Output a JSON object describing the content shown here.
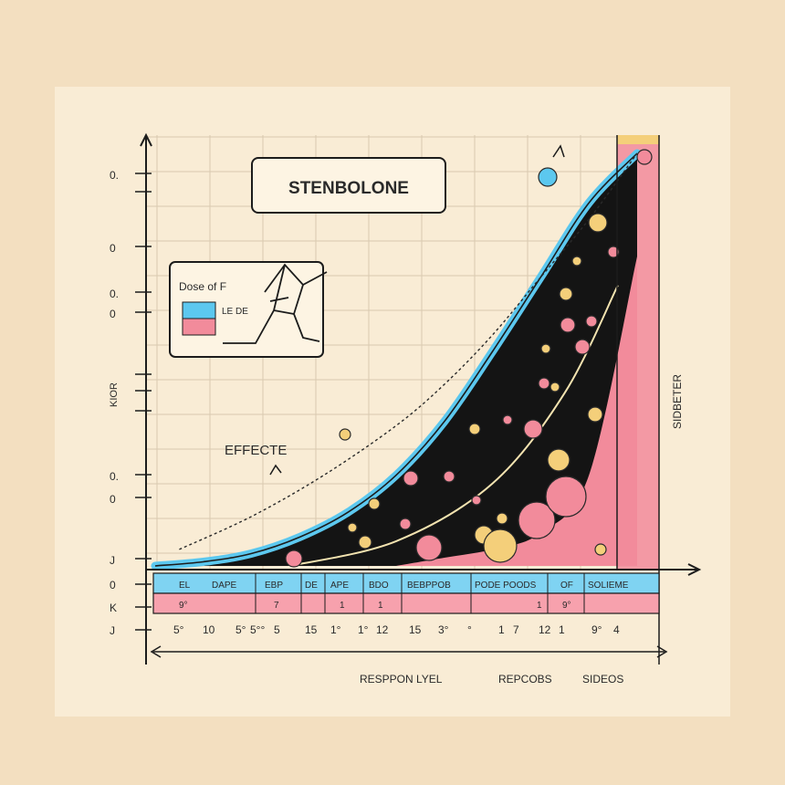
{
  "chart_data": {
    "type": "area",
    "title": "STENBOLONE",
    "legend": {
      "title": "Dose of F",
      "entry_label": "LE DE",
      "colors": [
        "#5cc8ef",
        "#f28b9b"
      ]
    },
    "annotation": "EFFECTE",
    "right_label": "SIDBETER",
    "left_tick_labels": [
      "0.",
      "0",
      "0.",
      "0",
      "KIOR",
      "0.",
      "0",
      "J",
      "0",
      "K",
      "J"
    ],
    "table_row1": [
      "EL",
      "DAPE",
      "EBP",
      "DE",
      "APE",
      "BDO",
      "BEBPPOB",
      "PODE POODS",
      "OF",
      "SOLIEME"
    ],
    "table_row2": [
      "9°",
      "7",
      "1",
      "1",
      "1",
      "9°"
    ],
    "x_tick_labels": [
      "5°",
      "10",
      "5°",
      "5°°",
      "5",
      "15",
      "1°",
      "1°",
      "12",
      "15",
      "3°",
      "°",
      "1",
      "7",
      "12",
      "1",
      "9°",
      "4"
    ],
    "xlabels": [
      "RESPPON LYEL",
      "REPCOBS",
      "SIDEOS"
    ],
    "series": [
      {
        "color": "#5cc8ef",
        "x": [
          0,
          10,
          20,
          30,
          40,
          50,
          60,
          70,
          80,
          90,
          100
        ],
        "y": [
          0,
          1,
          3,
          7,
          13,
          22,
          35,
          52,
          70,
          88,
          100
        ]
      },
      {
        "color": "#f28b9b",
        "x": [
          50,
          60,
          70,
          80,
          90,
          100
        ],
        "y": [
          0,
          2,
          4,
          8,
          22,
          75
        ]
      },
      {
        "style": "dashed",
        "x": [
          5,
          20,
          35,
          50,
          60,
          70,
          80,
          90,
          100
        ],
        "y": [
          4,
          12,
          22,
          34,
          44,
          56,
          70,
          84,
          100
        ]
      }
    ],
    "xlim": [
      0,
      100
    ],
    "ylim": [
      0,
      100
    ]
  }
}
